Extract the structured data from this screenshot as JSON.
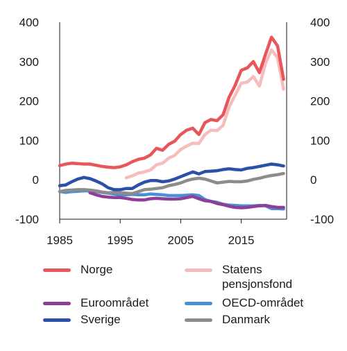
{
  "chart_data": {
    "type": "line",
    "title": "",
    "xlabel": "",
    "ylabel": "",
    "ylim": [
      -100,
      400
    ],
    "xlim": [
      1985,
      2022
    ],
    "y_ticks": [
      "400",
      "300",
      "200",
      "100",
      "0",
      "-100"
    ],
    "x_ticks": [
      "1985",
      "1995",
      "2005",
      "2015"
    ],
    "grid": false,
    "legend_position": "bottom",
    "series": [
      {
        "name": "Norge",
        "color": "#e8565a",
        "x": [
          1985,
          1986,
          1987,
          1988,
          1989,
          1990,
          1991,
          1992,
          1993,
          1994,
          1995,
          1996,
          1997,
          1998,
          1999,
          2000,
          2001,
          2002,
          2003,
          2004,
          2005,
          2006,
          2007,
          2008,
          2009,
          2010,
          2011,
          2012,
          2013,
          2014,
          2015,
          2016,
          2017,
          2018,
          2019,
          2020,
          2021,
          2022
        ],
        "values": [
          36,
          40,
          42,
          41,
          40,
          40,
          37,
          34,
          32,
          31,
          33,
          38,
          46,
          52,
          55,
          63,
          80,
          75,
          90,
          98,
          115,
          126,
          131,
          115,
          145,
          153,
          150,
          165,
          210,
          240,
          278,
          284,
          300,
          272,
          318,
          362,
          340,
          255
        ]
      },
      {
        "name": "Statens pensjonsfond",
        "color": "#f7bcbc",
        "x": [
          1996,
          1997,
          1998,
          1999,
          2000,
          2001,
          2002,
          2003,
          2004,
          2005,
          2006,
          2007,
          2008,
          2009,
          2010,
          2011,
          2012,
          2013,
          2014,
          2015,
          2016,
          2017,
          2018,
          2019,
          2020,
          2021,
          2022
        ],
        "values": [
          5,
          10,
          17,
          20,
          25,
          38,
          42,
          55,
          62,
          77,
          86,
          93,
          92,
          115,
          126,
          125,
          138,
          185,
          215,
          245,
          248,
          262,
          238,
          295,
          330,
          310,
          230
        ]
      },
      {
        "name": "Euroområdet",
        "color": "#8d3e96",
        "x": [
          1990,
          1991,
          1992,
          1993,
          1994,
          1995,
          1996,
          1997,
          1998,
          1999,
          2000,
          2001,
          2002,
          2003,
          2004,
          2005,
          2006,
          2007,
          2008,
          2009,
          2010,
          2011,
          2012,
          2013,
          2014,
          2015,
          2016,
          2017,
          2018,
          2019,
          2020,
          2021,
          2022
        ],
        "values": [
          -33,
          -38,
          -42,
          -44,
          -45,
          -45,
          -47,
          -50,
          -51,
          -51,
          -48,
          -47,
          -48,
          -49,
          -49,
          -48,
          -45,
          -42,
          -48,
          -53,
          -55,
          -60,
          -63,
          -67,
          -70,
          -71,
          -70,
          -68,
          -66,
          -65,
          -68,
          -70,
          -70
        ]
      },
      {
        "name": "OECD-området",
        "color": "#4b8fd6",
        "x": [
          1985,
          1986,
          1987,
          1988,
          1989,
          1990,
          1991,
          1992,
          1993,
          1994,
          1995,
          1996,
          1997,
          1998,
          1999,
          2000,
          2001,
          2002,
          2003,
          2004,
          2005,
          2006,
          2007,
          2008,
          2009,
          2010,
          2011,
          2012,
          2013,
          2014,
          2015,
          2016,
          2017,
          2018,
          2019,
          2020,
          2021,
          2022
        ],
        "values": [
          -30,
          -32,
          -30,
          -29,
          -28,
          -28,
          -30,
          -32,
          -34,
          -36,
          -38,
          -38,
          -37,
          -38,
          -38,
          -36,
          -37,
          -38,
          -40,
          -40,
          -40,
          -39,
          -38,
          -40,
          -50,
          -55,
          -57,
          -62,
          -64,
          -65,
          -66,
          -66,
          -66,
          -65,
          -66,
          -73,
          -73,
          -74
        ]
      },
      {
        "name": "Sverige",
        "color": "#2b50a8",
        "x": [
          1985,
          1986,
          1987,
          1988,
          1989,
          1990,
          1991,
          1992,
          1993,
          1994,
          1995,
          1996,
          1997,
          1998,
          1999,
          2000,
          2001,
          2002,
          2003,
          2004,
          2005,
          2006,
          2007,
          2008,
          2009,
          2010,
          2011,
          2012,
          2013,
          2014,
          2015,
          2016,
          2017,
          2018,
          2019,
          2020,
          2021,
          2022
        ],
        "values": [
          -15,
          -13,
          -5,
          2,
          6,
          3,
          -3,
          -10,
          -20,
          -25,
          -25,
          -22,
          -22,
          -13,
          -6,
          -2,
          -2,
          -5,
          -3,
          2,
          8,
          14,
          20,
          15,
          21,
          22,
          23,
          26,
          28,
          26,
          25,
          29,
          31,
          34,
          37,
          40,
          38,
          35
        ]
      },
      {
        "name": "Danmark",
        "color": "#8c8c8c",
        "x": [
          1985,
          1986,
          1987,
          1988,
          1989,
          1990,
          1991,
          1992,
          1993,
          1994,
          1995,
          1996,
          1997,
          1998,
          1999,
          2000,
          2001,
          2002,
          2003,
          2004,
          2005,
          2006,
          2007,
          2008,
          2009,
          2010,
          2011,
          2012,
          2013,
          2014,
          2015,
          2016,
          2017,
          2018,
          2019,
          2020,
          2021,
          2022
        ],
        "values": [
          -30,
          -27,
          -26,
          -25,
          -25,
          -26,
          -28,
          -31,
          -33,
          -32,
          -33,
          -34,
          -35,
          -30,
          -25,
          -24,
          -22,
          -20,
          -15,
          -12,
          -8,
          -2,
          2,
          4,
          2,
          -3,
          -8,
          -6,
          -4,
          -5,
          -5,
          -3,
          1,
          4,
          8,
          11,
          13,
          16
        ]
      }
    ],
    "legend": [
      {
        "label": "Norge",
        "series": 0
      },
      {
        "label": "Statens pensjonsfond",
        "series": 1
      },
      {
        "label": "Euroområdet",
        "series": 2
      },
      {
        "label": "OECD-området",
        "series": 3
      },
      {
        "label": "Sverige",
        "series": 4
      },
      {
        "label": "Danmark",
        "series": 5
      }
    ]
  }
}
